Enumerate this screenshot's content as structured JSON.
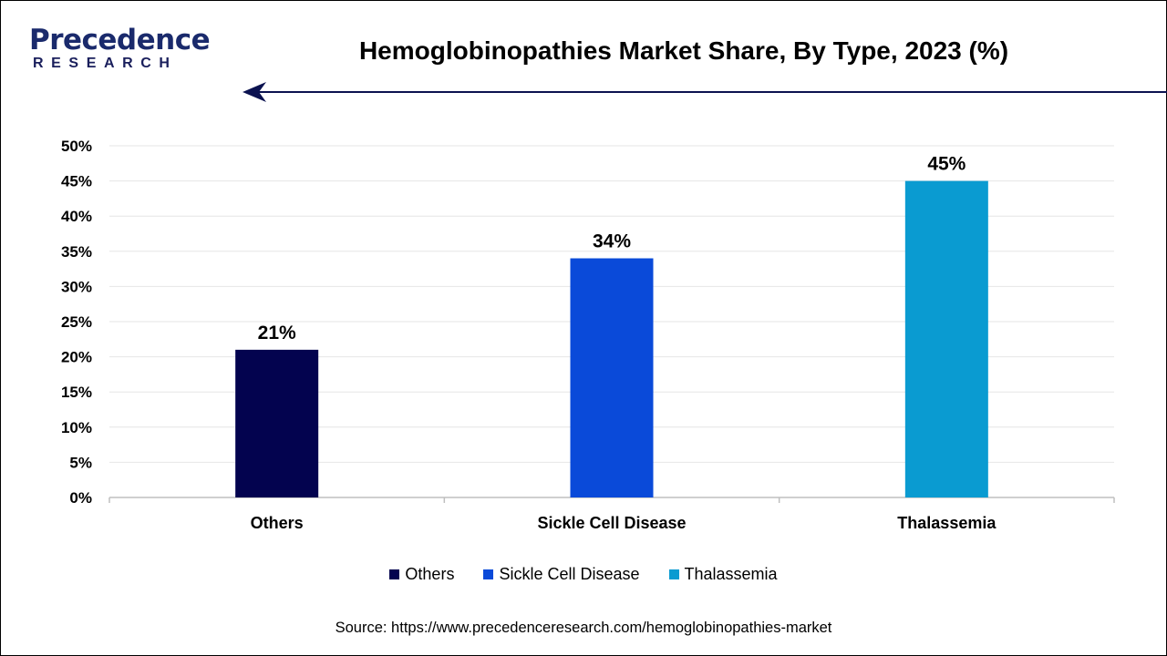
{
  "logo": {
    "top": "Precedence",
    "bottom": "RESEARCH"
  },
  "title": "Hemoglobinopathies Market Share, By Type, 2023 (%)",
  "source": "Source: https://www.precedenceresearch.com/hemoglobinopathies-market",
  "colors": {
    "brand": "#1a2a6c",
    "rule": "#0b1250"
  },
  "chart_data": {
    "type": "bar",
    "title": "Hemoglobinopathies Market Share, By Type, 2023 (%)",
    "xlabel": "",
    "ylabel": "",
    "categories": [
      "Others",
      "Sickle Cell Disease",
      "Thalassemia"
    ],
    "values": [
      21,
      34,
      45
    ],
    "data_labels": [
      "21%",
      "34%",
      "45%"
    ],
    "colors": [
      "#03034f",
      "#0a4ad9",
      "#0a9bd1"
    ],
    "ylim": [
      0,
      50
    ],
    "yticks": [
      0,
      5,
      10,
      15,
      20,
      25,
      30,
      35,
      40,
      45,
      50
    ],
    "ytick_labels": [
      "0%",
      "5%",
      "10%",
      "15%",
      "20%",
      "25%",
      "30%",
      "35%",
      "40%",
      "45%",
      "50%"
    ],
    "grid": true,
    "legend": {
      "placement": "bottom",
      "entries": [
        "Others",
        "Sickle Cell Disease",
        "Thalassemia"
      ]
    }
  }
}
